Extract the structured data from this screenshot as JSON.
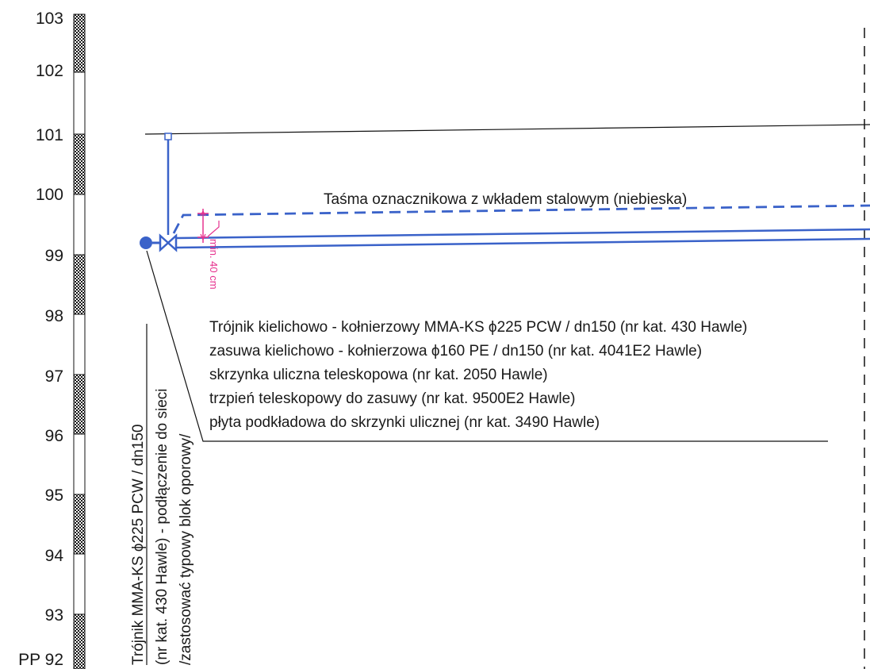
{
  "colors": {
    "pipe": "#3a62c9",
    "dimension": "#e6338f",
    "ink": "#1a1a1a"
  },
  "elevation_scale": {
    "levels": [
      "103",
      "102",
      "101",
      "100",
      "99",
      "98",
      "97",
      "96",
      "95",
      "94",
      "93",
      "PP 92"
    ]
  },
  "annotations": {
    "marker_tape": "Taśma oznacznikowa z wkładem stalowym (niebieska)",
    "min_cover": "min. 40 cm",
    "fittings_list": [
      "Trójnik kielichowo - kołnierzowy MMA-KS ϕ225 PCW / dn150 (nr kat. 430 Hawle)",
      "zasuwa kielichowo - kołnierzowa ϕ160 PE / dn150 (nr kat. 4041E2 Hawle)",
      "skrzynka uliczna teleskopowa (nr kat. 2050 Hawle)",
      "trzpień teleskopowy do zasuwy (nr kat. 9500E2 Hawle)",
      "płyta podkładowa do skrzynki ulicznej (nr kat. 3490 Hawle)"
    ],
    "vertical_note": [
      "Trójnik MMA-KS ϕ225 PCW / dn150",
      "(nr kat. 430 Hawle) - podłączenie do sieci",
      "/zastosować typowy blok oporowy/"
    ]
  }
}
